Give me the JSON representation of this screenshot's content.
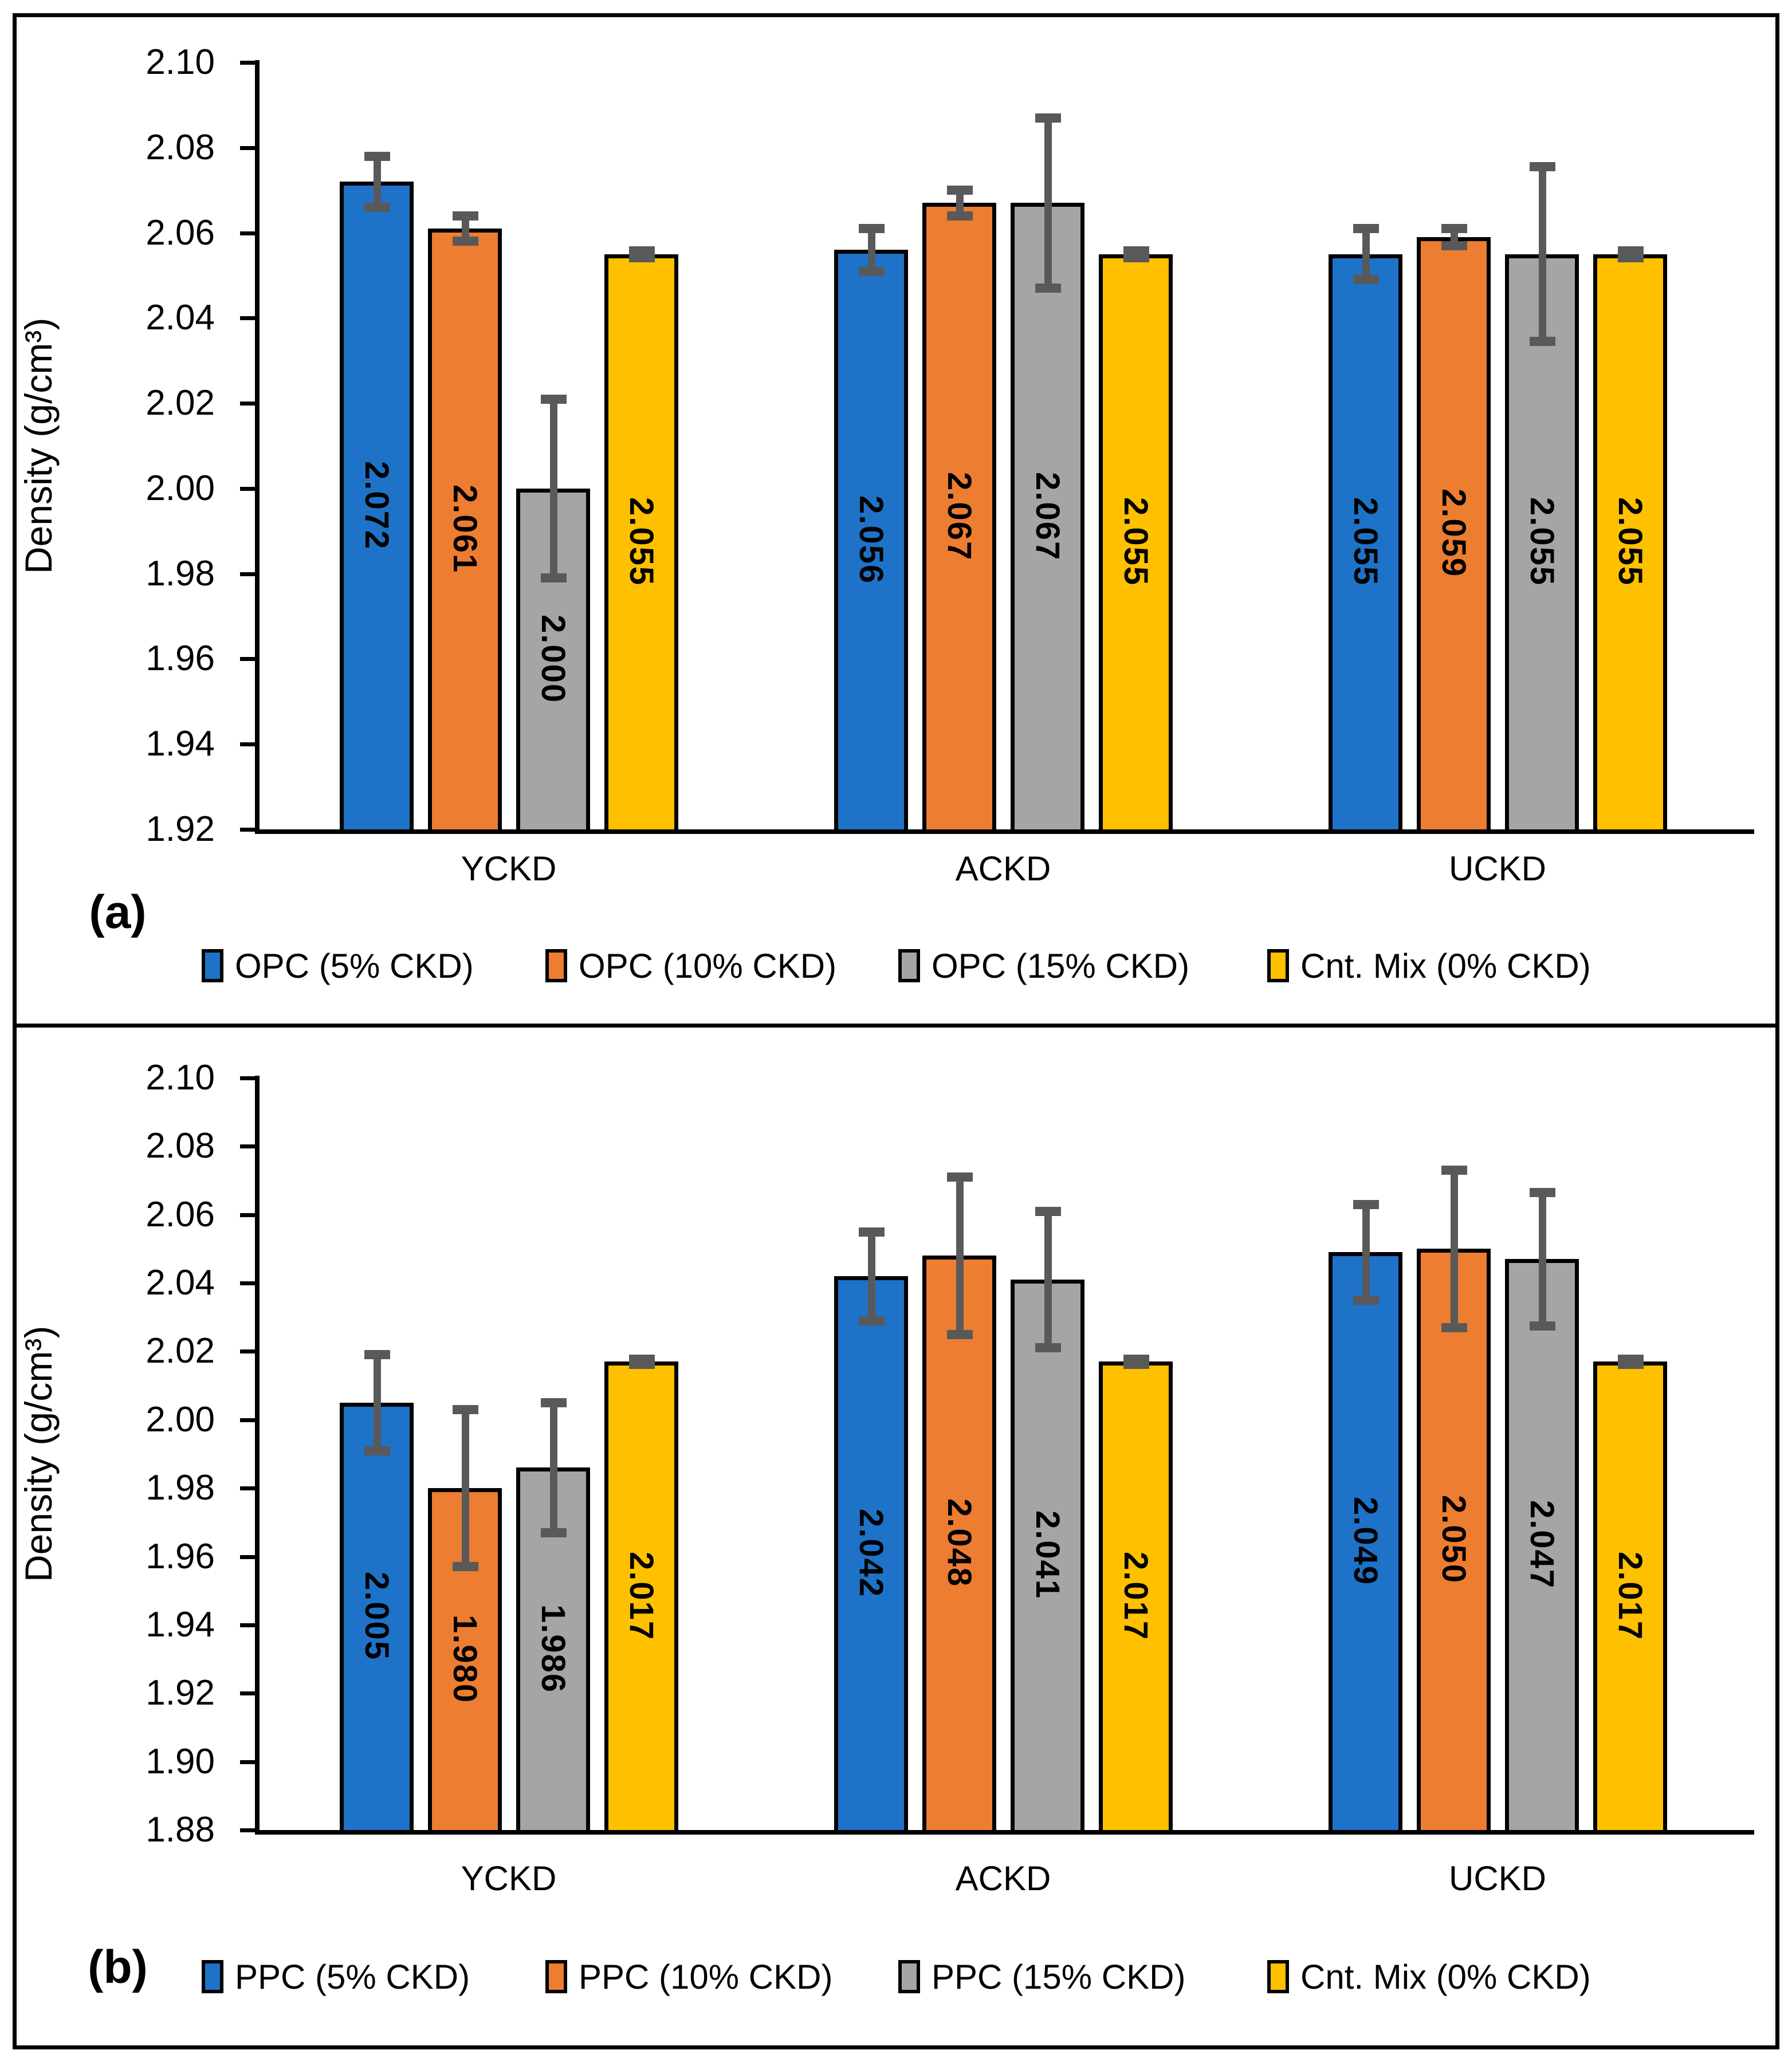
{
  "figure": {
    "background": "#FFFFFF",
    "border_color": "#000000",
    "error_bar_color": "#595959"
  },
  "chart_data": [
    {
      "type": "bar",
      "panel_label": "(a)",
      "ylabel": "Density (g/cm³)",
      "ylim": [
        1.92,
        2.1
      ],
      "ytick_step": 0.02,
      "ytick_decimals": 2,
      "grid": false,
      "legend_position": "bottom",
      "categories": [
        "YCKD",
        "ACKD",
        "UCKD"
      ],
      "series": [
        {
          "name": "OPC (5% CKD)",
          "color": "#1E73C8",
          "values": [
            2.072,
            2.056,
            2.055
          ],
          "labels": [
            "2.072",
            "2.056",
            "2.055"
          ],
          "errors": [
            0.006,
            0.005,
            0.006
          ]
        },
        {
          "name": "OPC (10% CKD)",
          "color": "#ED7D31",
          "values": [
            2.061,
            2.067,
            2.059
          ],
          "labels": [
            "2.061",
            "2.067",
            "2.059"
          ],
          "errors": [
            0.003,
            0.003,
            0.002
          ]
        },
        {
          "name": "OPC (15% CKD)",
          "color": "#A5A5A5",
          "values": [
            2.0,
            2.067,
            2.055
          ],
          "labels": [
            "2.000",
            "2.067",
            "2.055"
          ],
          "errors": [
            0.021,
            0.02,
            0.0205
          ]
        },
        {
          "name": "Cnt. Mix (0% CKD)",
          "color": "#FFC000",
          "values": [
            2.055,
            2.055,
            2.055
          ],
          "labels": [
            "2.055",
            "2.055",
            "2.055"
          ],
          "errors": [
            0.0008,
            0.0008,
            0.0008
          ]
        }
      ]
    },
    {
      "type": "bar",
      "panel_label": "(b)",
      "ylabel": "Density (g/cm³)",
      "ylim": [
        1.88,
        2.1
      ],
      "ytick_step": 0.02,
      "ytick_decimals": 2,
      "grid": false,
      "legend_position": "bottom",
      "categories": [
        "YCKD",
        "ACKD",
        "UCKD"
      ],
      "series": [
        {
          "name": "PPC (5% CKD)",
          "color": "#1E73C8",
          "values": [
            2.005,
            2.042,
            2.049
          ],
          "labels": [
            "2.005",
            "2.042",
            "2.049"
          ],
          "errors": [
            0.014,
            0.013,
            0.014
          ]
        },
        {
          "name": "PPC (10% CKD)",
          "color": "#ED7D31",
          "values": [
            1.98,
            2.048,
            2.05
          ],
          "labels": [
            "1.980",
            "2.048",
            "2.050"
          ],
          "errors": [
            0.023,
            0.023,
            0.023
          ]
        },
        {
          "name": "PPC (15% CKD)",
          "color": "#A5A5A5",
          "values": [
            1.986,
            2.041,
            2.047
          ],
          "labels": [
            "1.986",
            "2.041",
            "2.047"
          ],
          "errors": [
            0.019,
            0.02,
            0.0195
          ]
        },
        {
          "name": "Cnt. Mix (0% CKD)",
          "color": "#FFC000",
          "values": [
            2.017,
            2.017,
            2.017
          ],
          "labels": [
            "2.017",
            "2.017",
            "2.017"
          ],
          "errors": [
            0.0008,
            0.0008,
            0.0008
          ]
        }
      ]
    }
  ]
}
